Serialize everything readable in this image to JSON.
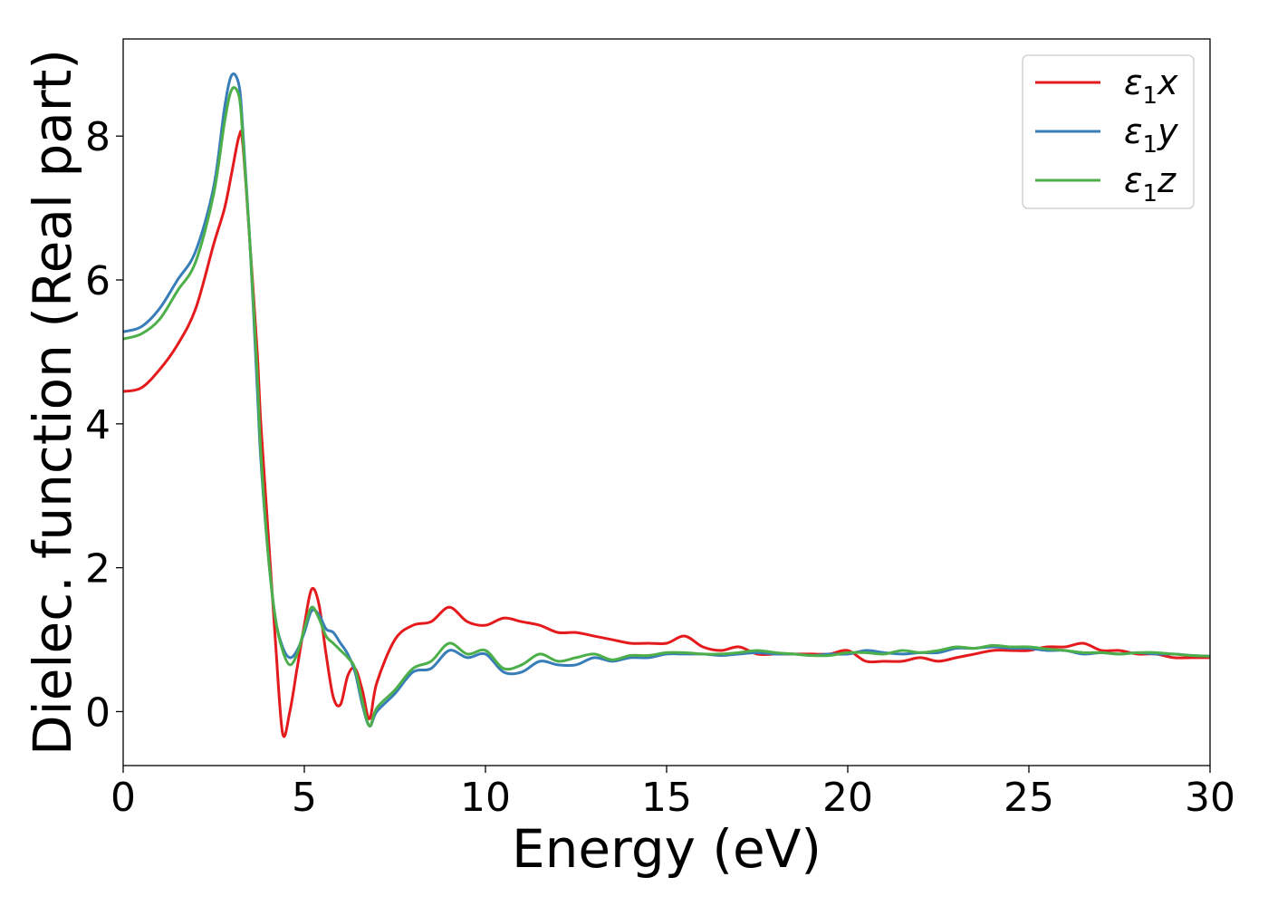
{
  "chart_data": {
    "type": "line",
    "xlabel": "Energy (eV)",
    "ylabel": "Dielec. function (Real part)",
    "xlim": [
      0,
      30
    ],
    "ylim": [
      -0.75,
      9.35
    ],
    "xticks": [
      0,
      5,
      10,
      15,
      20,
      25,
      30
    ],
    "yticks": [
      0,
      2,
      4,
      6,
      8
    ],
    "grid": false,
    "legend_position": "top-right",
    "series": [
      {
        "name": "ε1x",
        "symbol": "ε",
        "sub": "1",
        "suffix": "x",
        "color": "#e41a1c",
        "x": [
          0,
          0.5,
          1,
          1.5,
          2,
          2.5,
          2.8,
          3.0,
          3.2,
          3.3,
          3.5,
          3.7,
          3.8,
          4.0,
          4.2,
          4.4,
          4.6,
          4.8,
          5.0,
          5.2,
          5.4,
          5.6,
          5.8,
          6.0,
          6.2,
          6.4,
          6.6,
          6.8,
          7.0,
          7.5,
          8.0,
          8.5,
          9.0,
          9.5,
          10.0,
          10.5,
          11.0,
          11.5,
          12.0,
          12.5,
          13.0,
          13.5,
          14.0,
          14.5,
          15.0,
          15.5,
          16.0,
          16.5,
          17.0,
          17.5,
          18.0,
          18.5,
          19.0,
          19.5,
          20.0,
          20.5,
          21.0,
          21.5,
          22.0,
          22.5,
          23.0,
          23.5,
          24.0,
          24.5,
          25.0,
          25.5,
          26.0,
          26.5,
          27.0,
          27.5,
          28.0,
          28.5,
          29.0,
          29.5,
          30.0
        ],
        "y": [
          4.45,
          4.5,
          4.75,
          5.1,
          5.6,
          6.5,
          7.0,
          7.5,
          8.0,
          7.9,
          6.5,
          5.0,
          4.0,
          2.5,
          1.0,
          -0.3,
          0.0,
          0.6,
          1.2,
          1.7,
          1.5,
          0.8,
          0.2,
          0.1,
          0.5,
          0.6,
          0.3,
          -0.1,
          0.4,
          1.0,
          1.2,
          1.25,
          1.45,
          1.25,
          1.2,
          1.3,
          1.25,
          1.2,
          1.1,
          1.1,
          1.05,
          1.0,
          0.95,
          0.95,
          0.95,
          1.05,
          0.9,
          0.85,
          0.9,
          0.8,
          0.8,
          0.8,
          0.8,
          0.8,
          0.85,
          0.7,
          0.7,
          0.7,
          0.75,
          0.7,
          0.75,
          0.8,
          0.85,
          0.85,
          0.85,
          0.9,
          0.9,
          0.95,
          0.85,
          0.85,
          0.8,
          0.8,
          0.75,
          0.75,
          0.75
        ]
      },
      {
        "name": "ε1y",
        "symbol": "ε",
        "sub": "1",
        "suffix": "y",
        "color": "#377eb8",
        "x": [
          0,
          0.5,
          1,
          1.5,
          2,
          2.5,
          2.8,
          3.0,
          3.2,
          3.3,
          3.5,
          3.7,
          3.8,
          4.0,
          4.2,
          4.4,
          4.6,
          4.8,
          5.0,
          5.2,
          5.4,
          5.6,
          5.8,
          6.0,
          6.2,
          6.4,
          6.6,
          6.8,
          7.0,
          7.5,
          8.0,
          8.5,
          9.0,
          9.5,
          10.0,
          10.5,
          11.0,
          11.5,
          12.0,
          12.5,
          13.0,
          13.5,
          14.0,
          14.5,
          15.0,
          15.5,
          16.0,
          16.5,
          17.0,
          17.5,
          18.0,
          18.5,
          19.0,
          19.5,
          20.0,
          20.5,
          21.0,
          21.5,
          22.0,
          22.5,
          23.0,
          23.5,
          24.0,
          24.5,
          25.0,
          25.5,
          26.0,
          26.5,
          27.0,
          27.5,
          28.0,
          28.5,
          29.0,
          29.5,
          30.0
        ],
        "y": [
          5.28,
          5.35,
          5.6,
          6.0,
          6.4,
          7.3,
          8.4,
          8.85,
          8.7,
          8.1,
          6.5,
          4.5,
          3.5,
          2.2,
          1.3,
          0.9,
          0.75,
          0.85,
          1.1,
          1.4,
          1.35,
          1.15,
          1.1,
          0.95,
          0.8,
          0.55,
          0.1,
          -0.2,
          0.0,
          0.25,
          0.55,
          0.6,
          0.85,
          0.75,
          0.8,
          0.55,
          0.55,
          0.7,
          0.65,
          0.65,
          0.75,
          0.7,
          0.75,
          0.75,
          0.8,
          0.8,
          0.8,
          0.78,
          0.8,
          0.82,
          0.8,
          0.8,
          0.78,
          0.8,
          0.8,
          0.85,
          0.82,
          0.8,
          0.82,
          0.82,
          0.88,
          0.88,
          0.9,
          0.88,
          0.88,
          0.85,
          0.85,
          0.8,
          0.82,
          0.8,
          0.82,
          0.8,
          0.8,
          0.78,
          0.77
        ]
      },
      {
        "name": "ε1z",
        "symbol": "ε",
        "sub": "1",
        "suffix": "z",
        "color": "#4daf4a",
        "x": [
          0,
          0.5,
          1,
          1.5,
          2,
          2.5,
          2.8,
          3.0,
          3.2,
          3.3,
          3.5,
          3.7,
          3.8,
          4.0,
          4.2,
          4.4,
          4.6,
          4.8,
          5.0,
          5.2,
          5.4,
          5.6,
          5.8,
          6.0,
          6.2,
          6.4,
          6.6,
          6.8,
          7.0,
          7.5,
          8.0,
          8.5,
          9.0,
          9.5,
          10.0,
          10.5,
          11.0,
          11.5,
          12.0,
          12.5,
          13.0,
          13.5,
          14.0,
          14.5,
          15.0,
          15.5,
          16.0,
          16.5,
          17.0,
          17.5,
          18.0,
          18.5,
          19.0,
          19.5,
          20.0,
          20.5,
          21.0,
          21.5,
          22.0,
          22.5,
          23.0,
          23.5,
          24.0,
          24.5,
          25.0,
          25.5,
          26.0,
          26.5,
          27.0,
          27.5,
          28.0,
          28.5,
          29.0,
          29.5,
          30.0
        ],
        "y": [
          5.18,
          5.25,
          5.45,
          5.85,
          6.25,
          7.2,
          8.2,
          8.65,
          8.55,
          8.0,
          6.5,
          4.7,
          3.6,
          2.2,
          1.3,
          0.85,
          0.65,
          0.8,
          1.15,
          1.45,
          1.3,
          1.05,
          0.95,
          0.85,
          0.75,
          0.6,
          0.15,
          -0.2,
          0.05,
          0.3,
          0.6,
          0.7,
          0.95,
          0.8,
          0.85,
          0.6,
          0.65,
          0.8,
          0.7,
          0.75,
          0.8,
          0.72,
          0.78,
          0.78,
          0.82,
          0.82,
          0.8,
          0.8,
          0.82,
          0.85,
          0.82,
          0.8,
          0.78,
          0.78,
          0.82,
          0.82,
          0.8,
          0.85,
          0.82,
          0.85,
          0.9,
          0.88,
          0.92,
          0.9,
          0.9,
          0.87,
          0.85,
          0.82,
          0.82,
          0.8,
          0.82,
          0.82,
          0.8,
          0.78,
          0.77
        ]
      }
    ]
  }
}
